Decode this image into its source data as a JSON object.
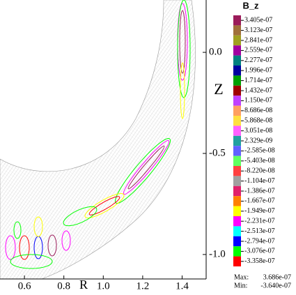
{
  "chart_data": {
    "type": "contour",
    "x_label": "R",
    "y_label": "Z",
    "xlim": [
      0.476,
      1.522
    ],
    "ylim": [
      -1.121,
      0.259
    ],
    "xticks": [
      0.6,
      0.8,
      {
        "value": 1,
        "label": "1.0"
      },
      1.2,
      1.4
    ],
    "yticks": [
      {
        "value": 0,
        "label": "0.0"
      },
      -0.5,
      {
        "value": -1,
        "label": "-1.0"
      }
    ],
    "legend": {
      "title": "B_z",
      "levels": [
        {
          "value": 3.405e-07,
          "label": "3.405e-07"
        },
        {
          "value": 3.123e-07,
          "label": "3.123e-07"
        },
        {
          "value": 2.841e-07,
          "label": "2.841e-07"
        },
        {
          "value": 2.559e-07,
          "label": "2.559e-07"
        },
        {
          "value": 2.277e-07,
          "label": "2.277e-07"
        },
        {
          "value": 1.996e-07,
          "label": "1.996e-07"
        },
        {
          "value": 1.714e-07,
          "label": "1.714e-07"
        },
        {
          "value": 1.432e-07,
          "label": "1.432e-07"
        },
        {
          "value": 1.15e-07,
          "label": "1.150e-07"
        },
        {
          "value": 8.686e-08,
          "label": "8.686e-08"
        },
        {
          "value": 5.868e-08,
          "label": "5.868e-08"
        },
        {
          "value": 3.051e-08,
          "label": "3.051e-08"
        },
        {
          "value": 2.329e-09,
          "label": "2.329e-09"
        },
        {
          "value": -2.585e-08,
          "label": "-2.585e-08"
        },
        {
          "value": -5.403e-08,
          "label": "-5.403e-08"
        },
        {
          "value": -8.22e-08,
          "label": "-8.220e-08"
        },
        {
          "value": -1.104e-07,
          "label": "-1.104e-07"
        },
        {
          "value": -1.386e-07,
          "label": "-1.386e-07"
        },
        {
          "value": -1.667e-07,
          "label": "-1.667e-07"
        },
        {
          "value": -1.949e-07,
          "label": "-1.949e-07"
        },
        {
          "value": -2.231e-07,
          "label": "-2.231e-07"
        },
        {
          "value": -2.513e-07,
          "label": "-2.513e-07"
        },
        {
          "value": -2.794e-07,
          "label": "-2.794e-07"
        },
        {
          "value": -3.076e-07,
          "label": "-3.076e-07"
        },
        {
          "value": -3.358e-07,
          "label": "-3.358e-07"
        }
      ],
      "colors": [
        "#9b1b5a",
        "#a0703a",
        "#a0a020",
        "#a000a0",
        "#008080",
        "#0000a0",
        "#00a000",
        "#a00000",
        "#c040ff",
        "#ffa060",
        "#ffe040",
        "#ff60ff",
        "#20a0a0",
        "#6060ff",
        "#60ff60",
        "#ff4040",
        "#a0a0a0",
        "#e0206a",
        "#ff8000",
        "#ffff00",
        "#ff00ff",
        "#00ffff",
        "#0000ff",
        "#00ff00",
        "#ff0000"
      ]
    },
    "max_label": "Max:",
    "max": {
      "value": 3.686e-07,
      "label": "3.686e-07"
    },
    "min_label": "Min:",
    "min": {
      "value": -3.64e-07,
      "label": "-3.640e-07"
    }
  }
}
